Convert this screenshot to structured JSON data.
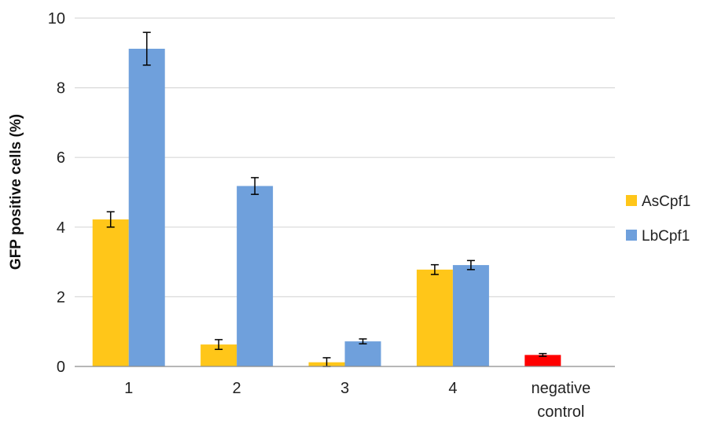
{
  "chart_data": {
    "type": "bar",
    "title": "",
    "xlabel": "",
    "ylabel": "GFP positive cells (%)",
    "ylim": [
      0,
      10
    ],
    "yticks": [
      0,
      2,
      4,
      6,
      8,
      10
    ],
    "grid": true,
    "legend_position": "right",
    "categories": [
      {
        "lines": [
          "1"
        ]
      },
      {
        "lines": [
          "2"
        ]
      },
      {
        "lines": [
          "3"
        ]
      },
      {
        "lines": [
          "4"
        ]
      },
      {
        "lines": [
          "negative",
          "control"
        ]
      }
    ],
    "series": [
      {
        "name": "AsCpf1",
        "color": "#FFC619",
        "values": [
          4.22,
          0.63,
          0.12,
          2.78,
          null
        ],
        "errors": [
          0.22,
          0.14,
          0.13,
          0.14,
          null
        ]
      },
      {
        "name": "LbCpf1",
        "color": "#6FA0DC",
        "values": [
          9.12,
          5.18,
          0.72,
          2.91,
          null
        ],
        "errors": [
          0.47,
          0.24,
          0.07,
          0.13,
          null
        ]
      }
    ],
    "extra_bars": [
      {
        "category_index": 4,
        "value": 0.33,
        "error": 0.04,
        "color": "#FF0000"
      }
    ]
  }
}
